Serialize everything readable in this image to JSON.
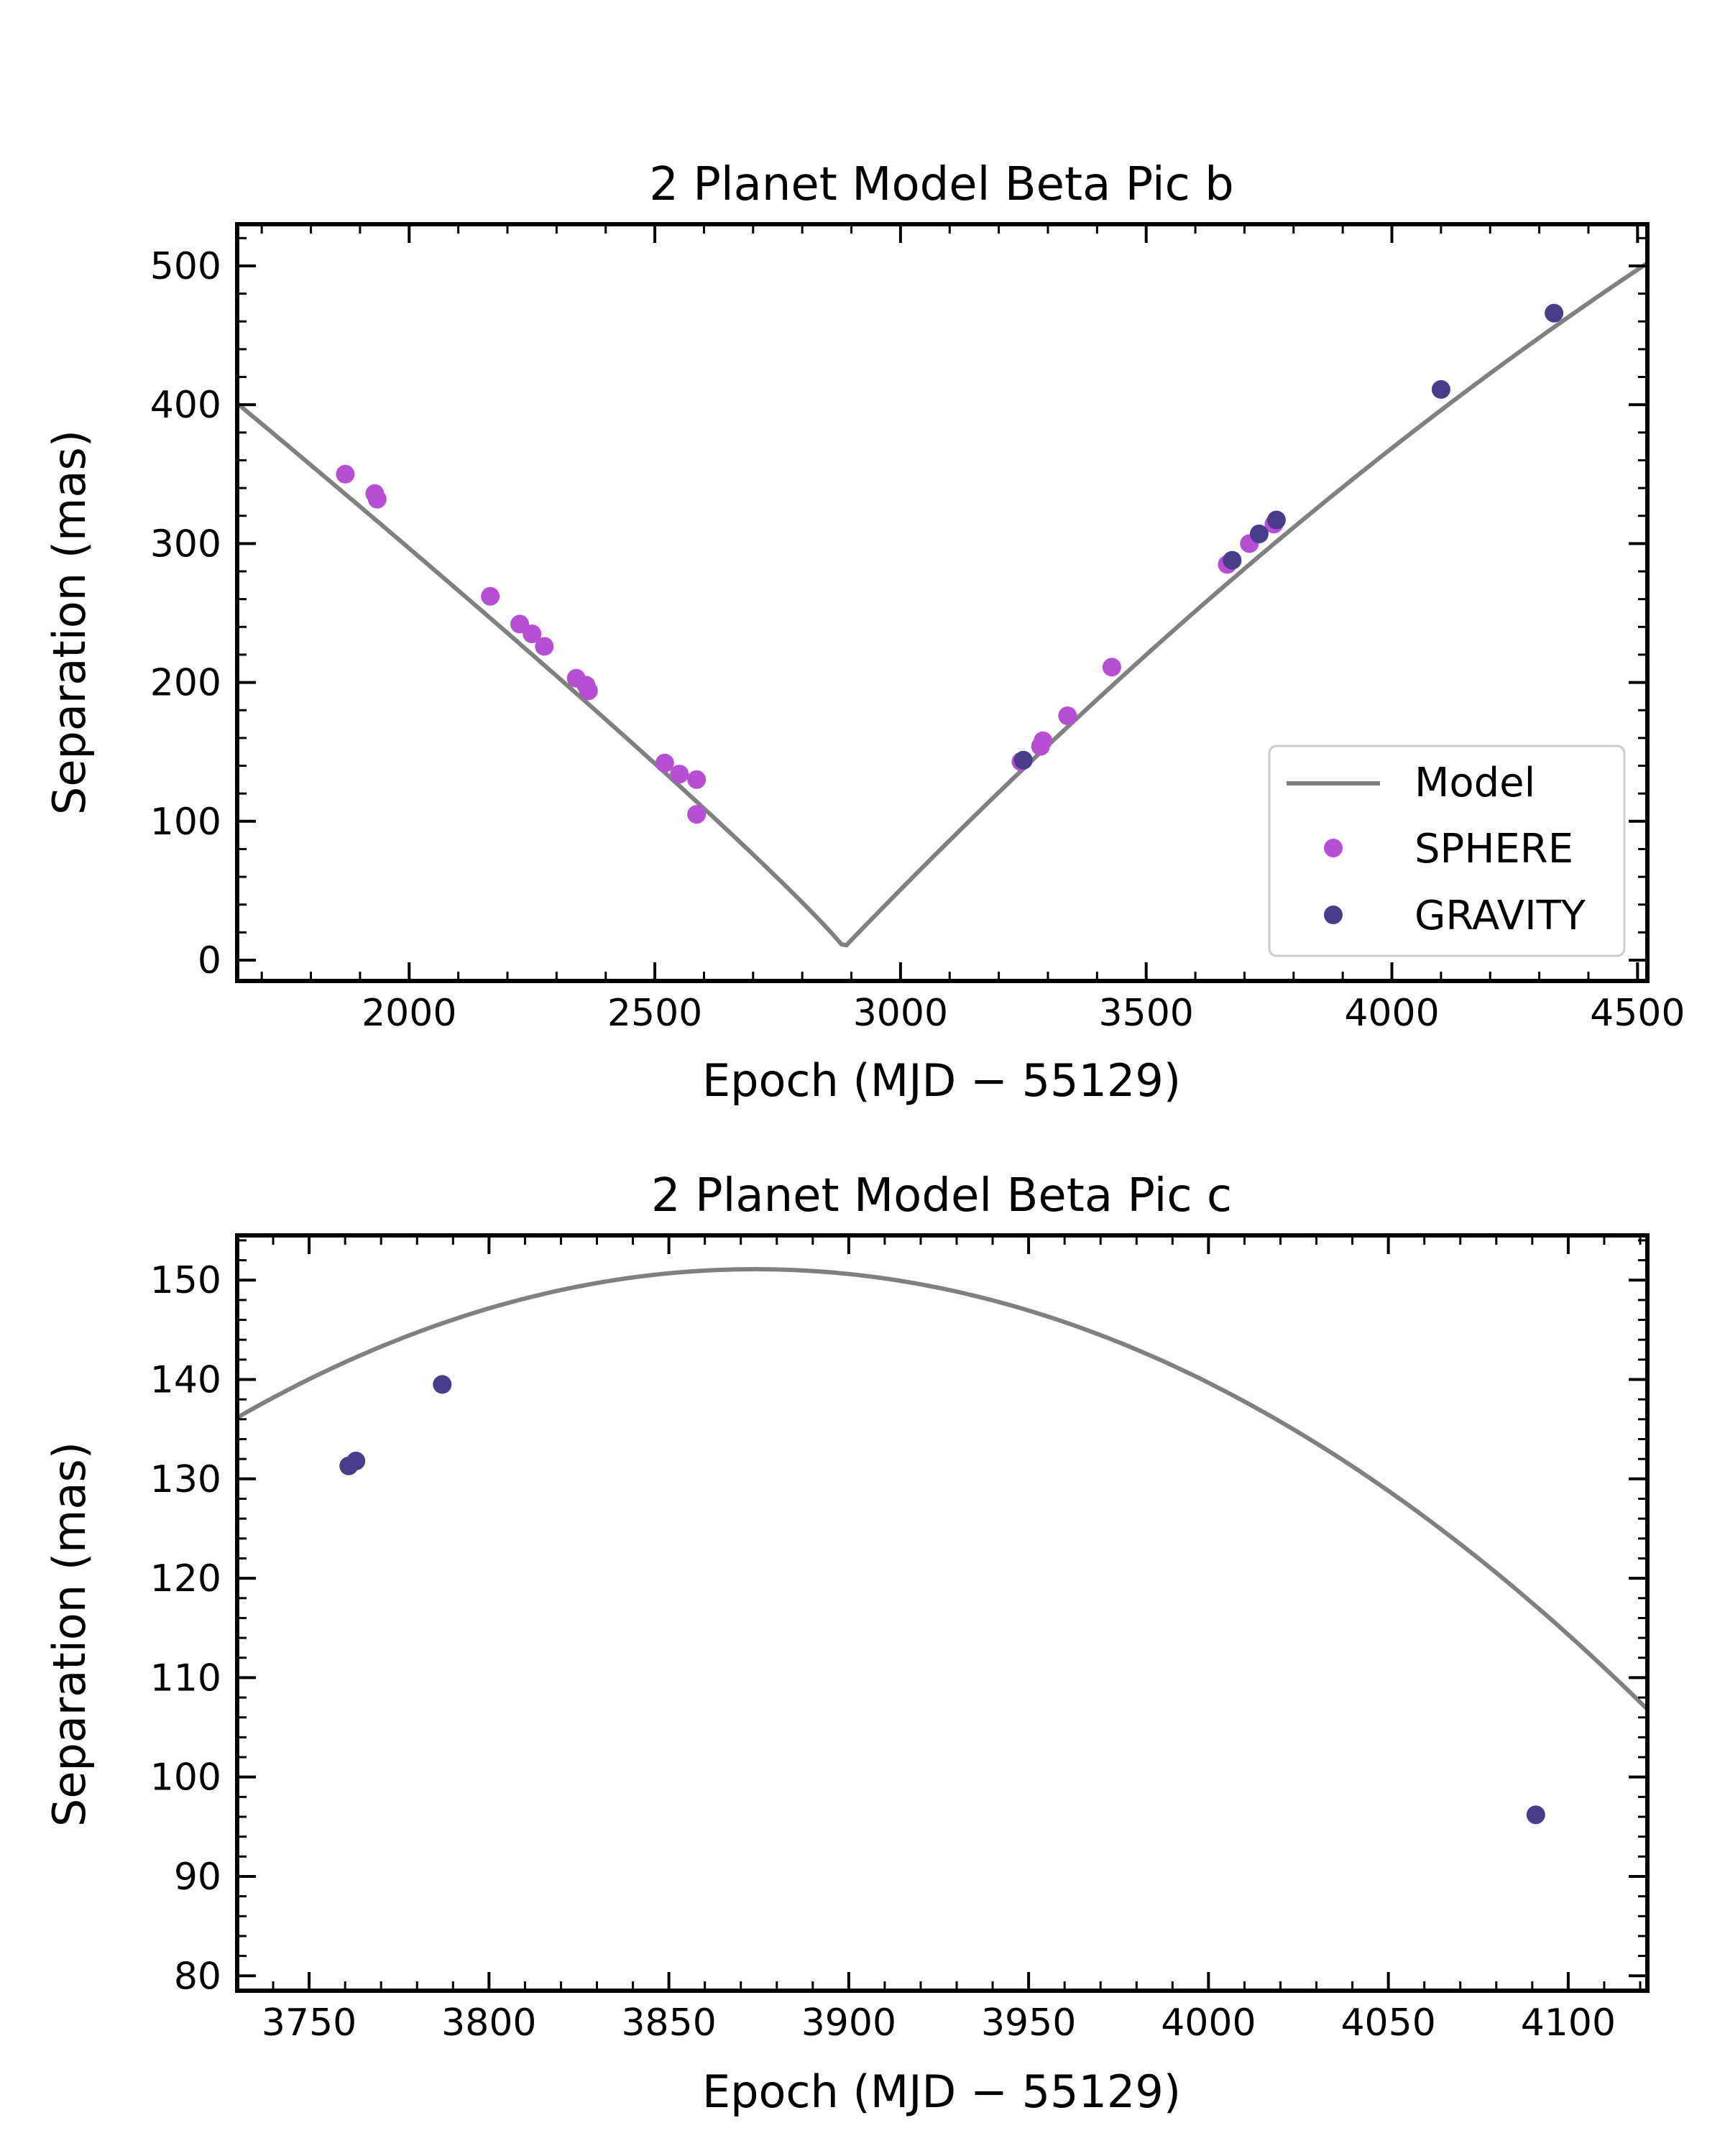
{
  "chart_data": [
    {
      "type": "scatter",
      "title": "2 Planet Model Beta Pic b",
      "xlabel": "Epoch (MJD − 55129)",
      "ylabel": "Separation (mas)",
      "xlim": [
        1650,
        4520
      ],
      "ylim": [
        -15,
        530
      ],
      "xticks": [
        2000,
        2500,
        3000,
        3500,
        4000,
        4500
      ],
      "yticks": [
        0,
        100,
        200,
        300,
        400,
        500
      ],
      "legend": {
        "position": "lower-right",
        "entries": [
          {
            "label": "Model",
            "kind": "line",
            "color": "#808080"
          },
          {
            "label": "SPHERE",
            "kind": "marker",
            "color": "#b64fd3"
          },
          {
            "label": "GRAVITY",
            "kind": "marker",
            "color": "#483d8b"
          }
        ]
      },
      "model": {
        "name": "Model",
        "color": "#808080",
        "x": [
          1650,
          1700,
          1800,
          1900,
          2000,
          2100,
          2200,
          2300,
          2400,
          2500,
          2600,
          2700,
          2800,
          2850,
          2870,
          2885,
          2900,
          2950,
          3000,
          3100,
          3200,
          3300,
          3400,
          3500,
          3600,
          3700,
          3800,
          3900,
          4000,
          4100,
          4200,
          4300,
          4400,
          4520
        ],
        "y": [
          401,
          390,
          363,
          335,
          305,
          274,
          241,
          208,
          174,
          139,
          104,
          68,
          34,
          18,
          12,
          9,
          13,
          33,
          54,
          97,
          141,
          184,
          226,
          267,
          307,
          346,
          382,
          414,
          443,
          469,
          460,
          481,
          488,
          502
        ]
      },
      "series": [
        {
          "name": "SPHERE",
          "color": "#b64fd3",
          "x": [
            1870,
            1930,
            1935,
            2165,
            2225,
            2250,
            2275,
            2340,
            2360,
            2365,
            2520,
            2550,
            2585,
            2585,
            3245,
            3285,
            3290,
            3340,
            3430,
            3665,
            3710,
            3760
          ],
          "y": [
            350,
            336,
            332,
            262,
            242,
            235,
            226,
            203,
            198,
            194,
            142,
            134,
            130,
            105,
            143,
            154,
            158,
            176,
            211,
            285,
            300,
            314
          ]
        },
        {
          "name": "GRAVITY",
          "color": "#483d8b",
          "x": [
            3250,
            3675,
            3730,
            3765,
            4100,
            4330
          ],
          "y": [
            144,
            288,
            307,
            317,
            411,
            466
          ]
        }
      ]
    },
    {
      "type": "scatter",
      "title": "2 Planet Model Beta Pic c",
      "xlabel": "Epoch (MJD − 55129)",
      "ylabel": "Separation (mas)",
      "xlim": [
        3730,
        4122
      ],
      "ylim": [
        78.5,
        154.5
      ],
      "xticks": [
        3750,
        3800,
        3850,
        3900,
        3950,
        4000,
        4050,
        4100
      ],
      "yticks": [
        80,
        90,
        100,
        110,
        120,
        130,
        140,
        150
      ],
      "model": {
        "name": "Model",
        "color": "#808080",
        "peak_x": 3874,
        "peak_y": 151.1,
        "curvature": 0.00072
      },
      "series": [
        {
          "name": "GRAVITY",
          "color": "#483d8b",
          "x": [
            3761,
            3763,
            3787,
            4091
          ],
          "y": [
            131.3,
            131.8,
            139.5,
            96.2
          ]
        }
      ]
    }
  ]
}
